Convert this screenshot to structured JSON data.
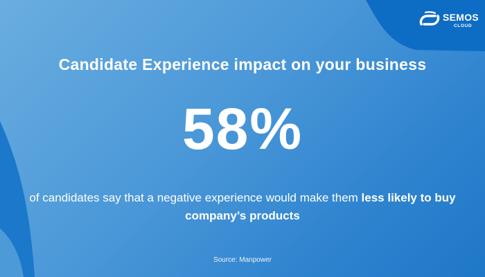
{
  "brand": {
    "name": "SEMOS",
    "sub": "CLOUD",
    "logo_icon": "semos-cloud-logo-icon"
  },
  "headline": "Candidate Experience impact on your business",
  "stat": "58%",
  "description": {
    "regular": "of candidates say that a negative experience would make them ",
    "bold": "less likely to buy company’s products"
  },
  "source": "Source:  Manpower",
  "colors": {
    "background_light": "#6aaee0",
    "background_dark": "#1f77c7",
    "shape_dark": "#0d6cc4",
    "text": "#ffffff"
  }
}
